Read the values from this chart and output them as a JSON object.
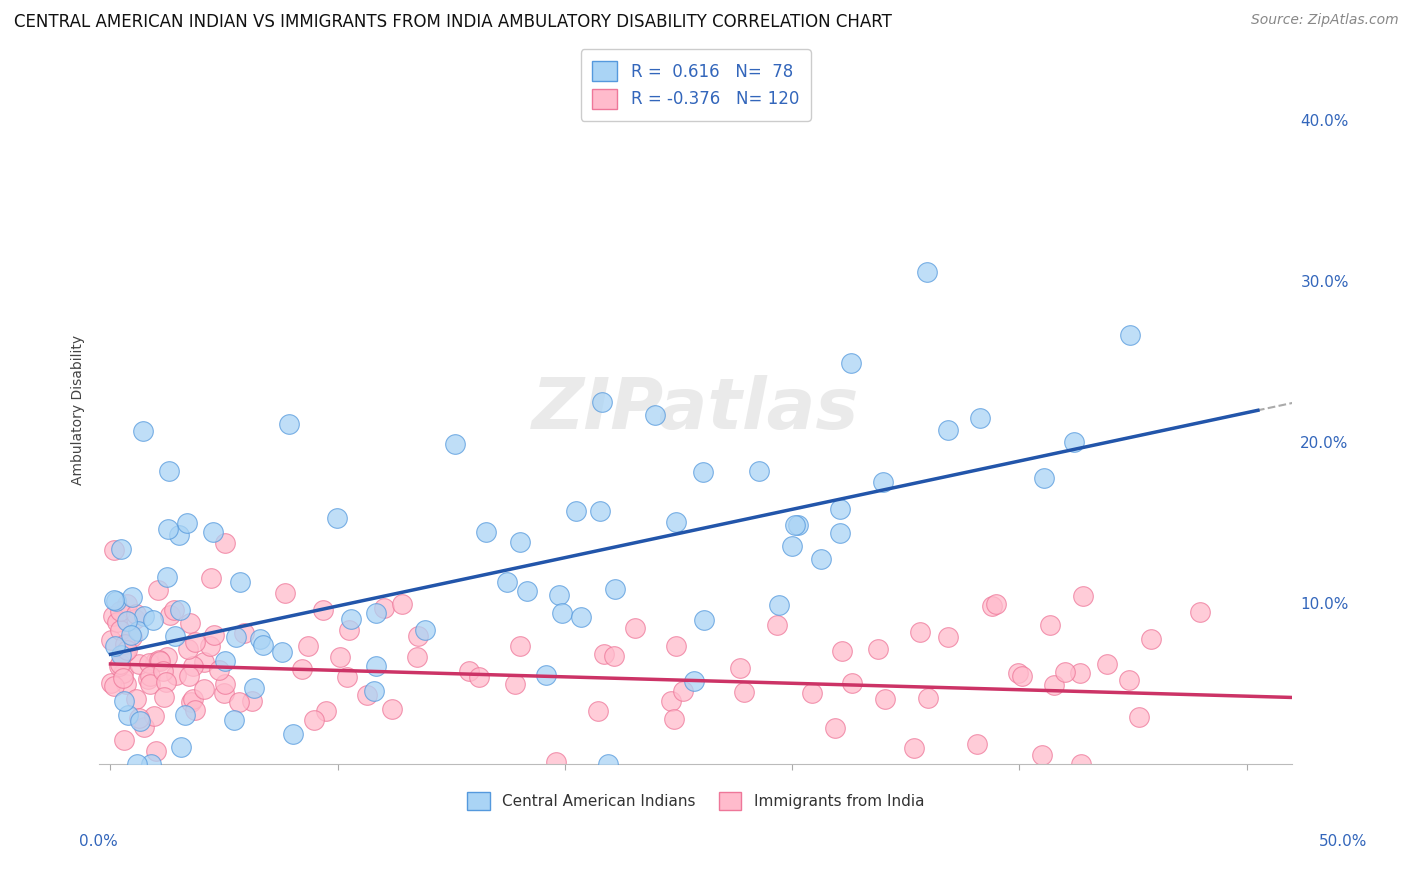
{
  "title": "CENTRAL AMERICAN INDIAN VS IMMIGRANTS FROM INDIA AMBULATORY DISABILITY CORRELATION CHART",
  "source": "Source: ZipAtlas.com",
  "ylabel": "Ambulatory Disability",
  "xlim": [
    -0.005,
    0.52
  ],
  "ylim": [
    0.0,
    0.44
  ],
  "yticks_right": [
    0.0,
    0.1,
    0.2,
    0.3,
    0.4
  ],
  "ytick_labels_right": [
    "",
    "10.0%",
    "20.0%",
    "30.0%",
    "40.0%"
  ],
  "grid_color": "#d0d0d0",
  "background_color": "#ffffff",
  "blue_scatter_facecolor": "#aad4f5",
  "blue_scatter_edgecolor": "#5599dd",
  "blue_line_color": "#2255aa",
  "pink_scatter_facecolor": "#ffbbcc",
  "pink_scatter_edgecolor": "#ee7799",
  "pink_line_color": "#cc3366",
  "gray_dash_color": "#aaaaaa",
  "blue_R": 0.616,
  "blue_N": 78,
  "pink_R": -0.376,
  "pink_N": 120,
  "legend_label_blue": "Central American Indians",
  "legend_label_pink": "Immigrants from India",
  "title_fontsize": 12,
  "source_fontsize": 10,
  "label_fontsize": 10,
  "tick_fontsize": 11,
  "legend_fontsize": 12,
  "blue_intercept": 0.068,
  "blue_slope": 0.3,
  "pink_intercept": 0.062,
  "pink_slope": -0.04,
  "blue_noise_std": 0.055,
  "pink_noise_std": 0.025
}
